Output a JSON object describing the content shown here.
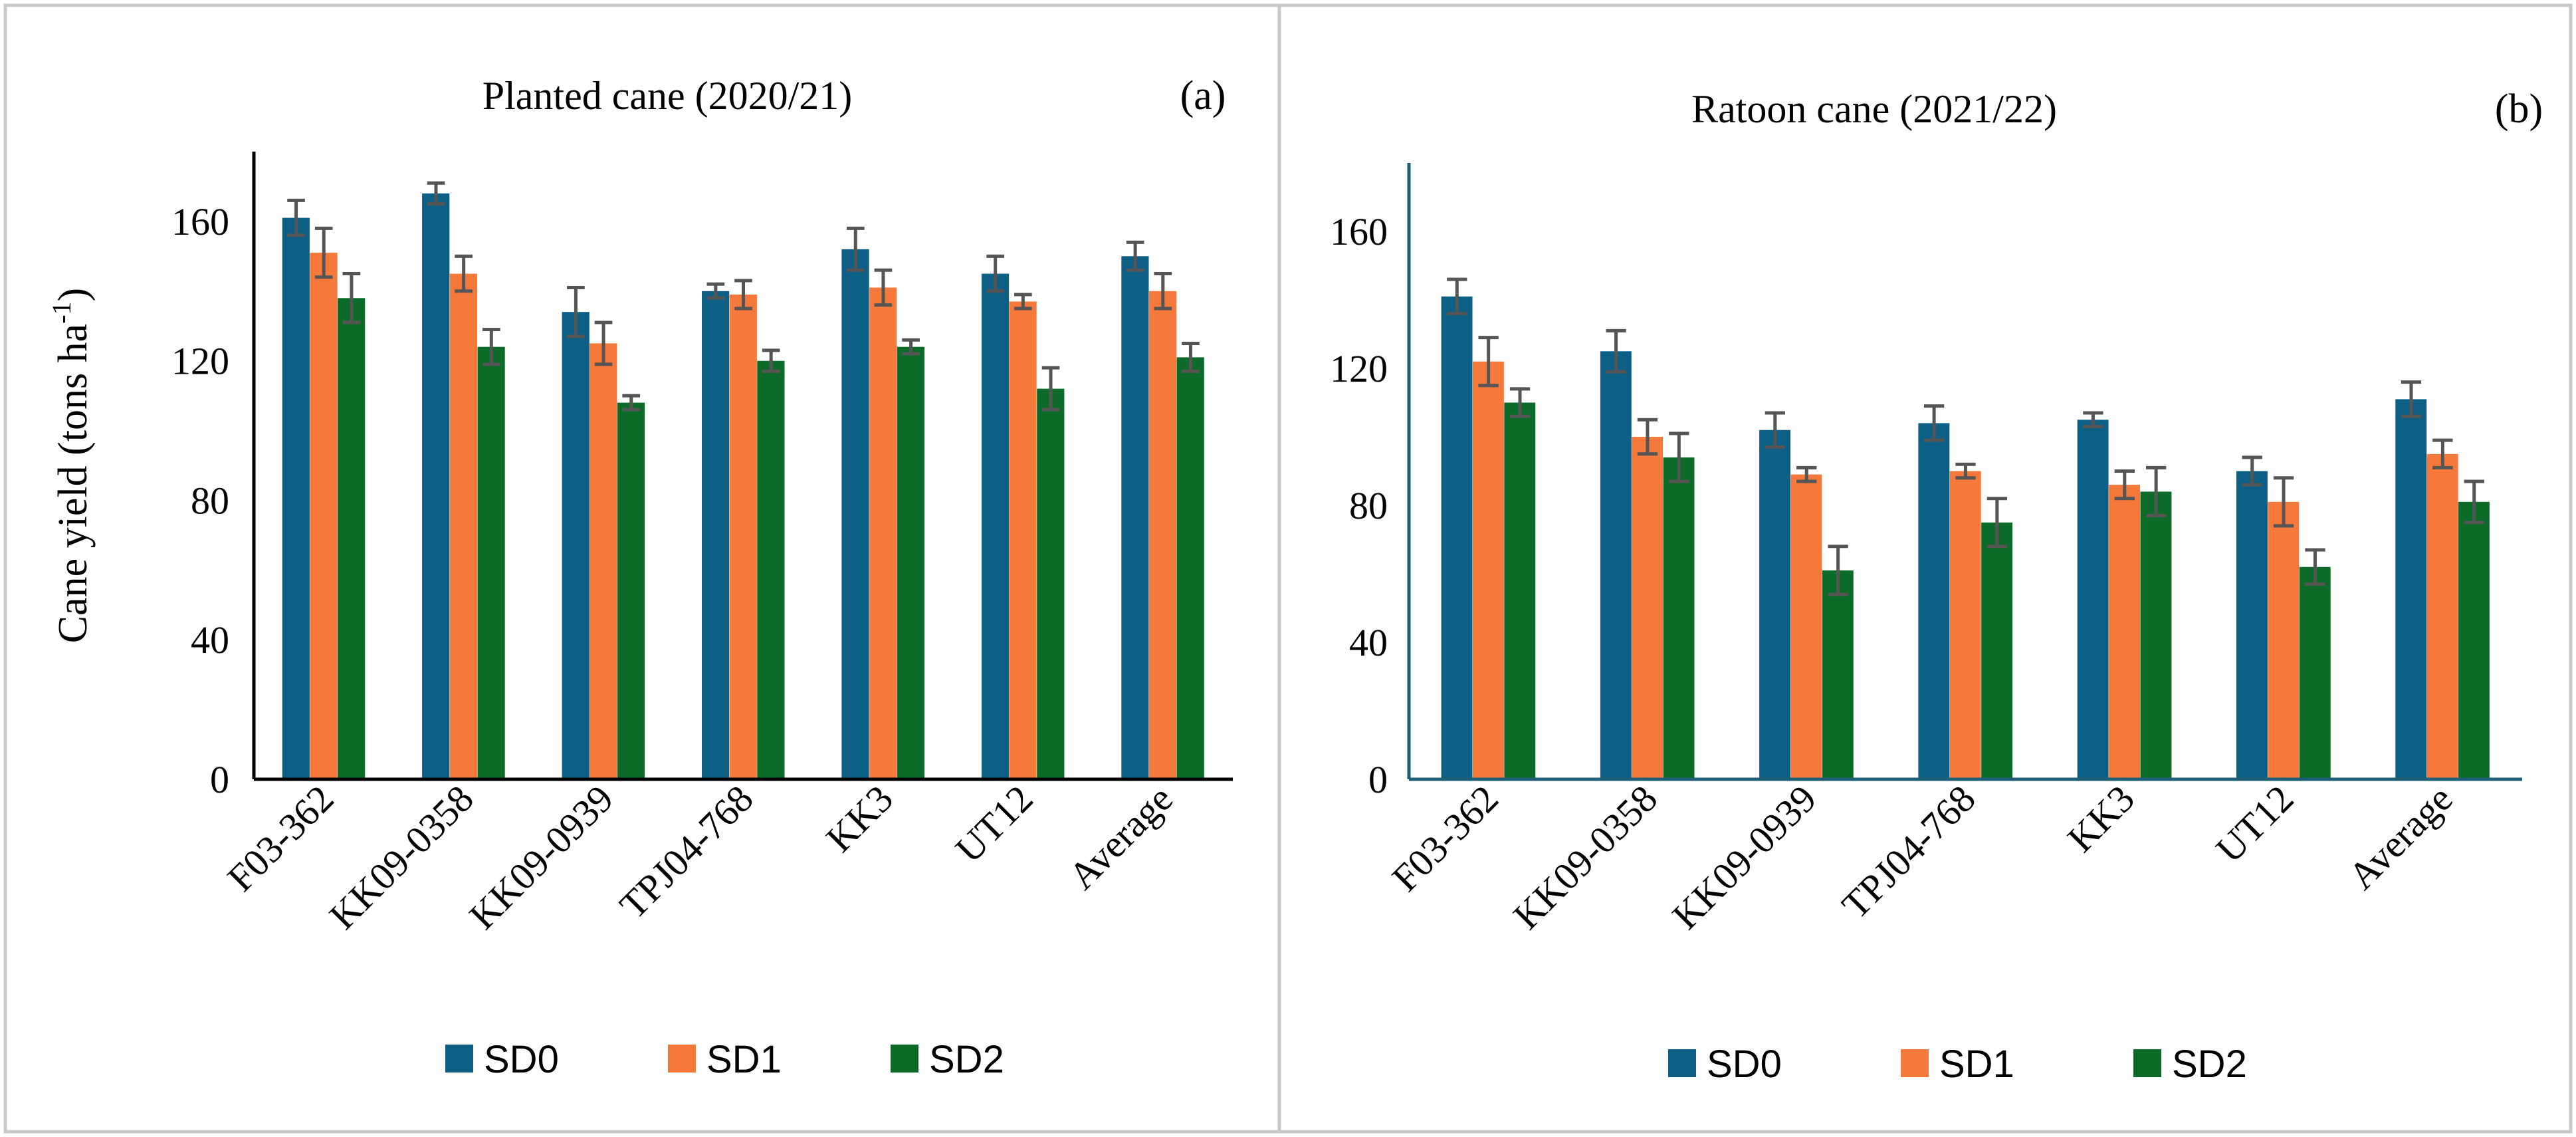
{
  "figure": {
    "colors": {
      "SD0": "#0e5f85",
      "SD1": "#f5793a",
      "SD2": "#0c6b28",
      "error": "#555555",
      "frame": "#c8c8c8"
    }
  },
  "chart_data": [
    {
      "type": "bar",
      "panel": "(a)",
      "title": "Planted cane (2020/21)",
      "ylabel_main": "Cane yield (tons ha",
      "ylabel_sup": "-1",
      "ylabel_close": ")",
      "xlabel": "",
      "ylim": [
        0,
        180
      ],
      "yticks": [
        0,
        40,
        80,
        120,
        160
      ],
      "grid": false,
      "legend_position": "bottom",
      "categories": [
        "F03-362",
        "KK09-0358",
        "KK09-0939",
        "TPJ04-768",
        "KK3",
        "UT12",
        "Average"
      ],
      "series": [
        {
          "name": "SD0",
          "values": [
            161,
            168,
            134,
            140,
            152,
            145,
            150
          ],
          "errors": [
            5,
            3,
            7,
            2,
            6,
            5,
            4
          ]
        },
        {
          "name": "SD1",
          "values": [
            151,
            145,
            125,
            139,
            141,
            137,
            140
          ],
          "errors": [
            7,
            5,
            6,
            4,
            5,
            2,
            5
          ]
        },
        {
          "name": "SD2",
          "values": [
            138,
            124,
            108,
            120,
            124,
            112,
            121
          ],
          "errors": [
            7,
            5,
            2,
            3,
            2,
            6,
            4
          ]
        }
      ]
    },
    {
      "type": "bar",
      "panel": "(b)",
      "title": "Ratoon cane (2021/22)",
      "ylabel_main": "",
      "ylabel_sup": "",
      "ylabel_close": "",
      "xlabel": "",
      "ylim": [
        0,
        180
      ],
      "yticks": [
        0,
        40,
        80,
        120,
        160
      ],
      "grid": false,
      "legend_position": "bottom",
      "categories": [
        "F03-362",
        "KK09-0358",
        "KK09-0939",
        "TPJ04-768",
        "KK3",
        "UT12",
        "Average"
      ],
      "series": [
        {
          "name": "SD0",
          "values": [
            141,
            125,
            102,
            104,
            105,
            90,
            111
          ],
          "errors": [
            5,
            6,
            5,
            5,
            2,
            4,
            5
          ]
        },
        {
          "name": "SD1",
          "values": [
            122,
            100,
            89,
            90,
            86,
            81,
            95
          ],
          "errors": [
            7,
            5,
            2,
            2,
            4,
            7,
            4
          ]
        },
        {
          "name": "SD2",
          "values": [
            110,
            94,
            61,
            75,
            84,
            62,
            81
          ],
          "errors": [
            4,
            7,
            7,
            7,
            7,
            5,
            6
          ]
        }
      ]
    }
  ]
}
